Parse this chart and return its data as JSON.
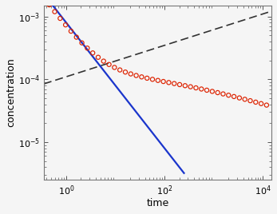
{
  "title": "",
  "xlabel": "time",
  "ylabel": "concentration",
  "xlim": [
    0.35,
    15000
  ],
  "ylim": [
    2.5e-06,
    0.0015
  ],
  "blue_line_tmin": 0.35,
  "blue_line_tmax": 250,
  "blue_A": 0.0008,
  "blue_exp": -1.0,
  "dashed_tmin": 0.35,
  "dashed_tmax": 15000,
  "dashed_A": 0.00011,
  "dashed_exp": 0.25,
  "circles_tmin": 0.35,
  "circles_tmax": 12000,
  "circles_A1": 0.0008,
  "circles_exp1": -1.0,
  "circles_A2": 0.00045,
  "circles_exp2": -0.25,
  "circles_transition": 25,
  "circles_sigma": 1.2,
  "n_circles": 42,
  "blue_color": "#1a35cc",
  "dashed_color": "#333333",
  "circle_color": "#dd2200",
  "bg_color": "#f5f5f5",
  "tick_color": "#555555"
}
